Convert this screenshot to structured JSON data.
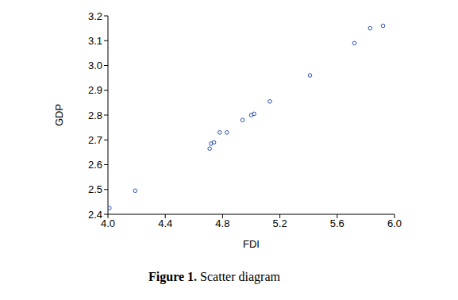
{
  "chart_data": {
    "type": "scatter",
    "title": "Figure 1. Scatter diagram",
    "x_label": "FDI",
    "y_label": "GDP",
    "x": [
      4.01,
      4.19,
      4.71,
      4.72,
      4.74,
      4.78,
      4.83,
      4.94,
      5.0,
      5.02,
      5.13,
      5.41,
      5.72,
      5.83,
      5.92
    ],
    "values": [
      2.425,
      2.495,
      2.665,
      2.685,
      2.69,
      2.73,
      2.73,
      2.78,
      2.8,
      2.805,
      2.855,
      2.96,
      3.09,
      3.15,
      3.16
    ],
    "color": "#2a4fa8",
    "marker": "circle",
    "xlim": [
      4.0,
      6.0
    ],
    "xticks": [
      {
        "value": 4,
        "label": "4.0"
      },
      4.4,
      4.8,
      5.2,
      5.6,
      {
        "value": 6,
        "label": "6.0"
      }
    ],
    "ylim": [
      2.4,
      3.2
    ],
    "yticks": [
      2.4,
      2.5,
      2.6,
      2.7,
      2.8,
      2.9,
      {
        "value": 3,
        "label": "3.0"
      },
      3.1,
      3.2
    ],
    "grid": false
  }
}
